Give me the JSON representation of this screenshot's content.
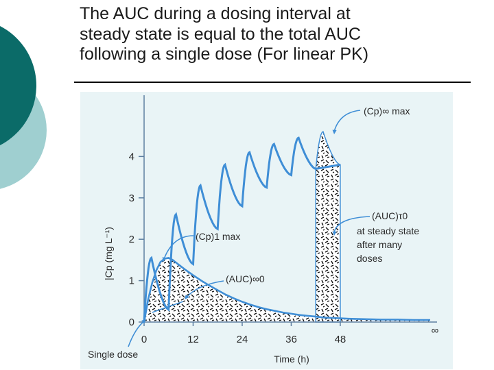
{
  "slide": {
    "title_lines": [
      "The AUC during a dosing interval at",
      "steady state is equal to the total AUC",
      "following a single dose (For linear PK)"
    ],
    "colors": {
      "deco_dark": "#0b6b68",
      "deco_light": "#9fcfd0",
      "figure_bg": "#e9f4f6",
      "curve": "#3f8ed6",
      "axis": "#5d7ea0"
    }
  },
  "chart_data": {
    "type": "line",
    "xlabel": "Time (h)",
    "ylabel": "|Cp (mg L⁻¹)",
    "x_ticks": [
      "0",
      "12",
      "24",
      "36",
      "48",
      "∞"
    ],
    "y_ticks": [
      "0",
      "1",
      "2",
      "3",
      "4"
    ],
    "x_tick_values": [
      0,
      12,
      24,
      36,
      48
    ],
    "y_tick_values": [
      0,
      1,
      2,
      3,
      4
    ],
    "xlim": [
      0,
      70
    ],
    "ylim": [
      0,
      4.9
    ],
    "dosing_interval_h": 6,
    "series": [
      {
        "points": [
          [
            0,
            0
          ],
          [
            1,
            0.55
          ],
          [
            2,
            0.95
          ],
          [
            3,
            1.25
          ],
          [
            4,
            1.45
          ],
          [
            5,
            1.53
          ],
          [
            6,
            1.55
          ],
          [
            7,
            1.5
          ],
          [
            8,
            1.42
          ],
          [
            10,
            1.27
          ],
          [
            12,
            1.13
          ],
          [
            14,
            1.0
          ],
          [
            16,
            0.88
          ],
          [
            18,
            0.77
          ],
          [
            20,
            0.66
          ],
          [
            22,
            0.57
          ],
          [
            24,
            0.49
          ],
          [
            26,
            0.42
          ],
          [
            28,
            0.36
          ],
          [
            30,
            0.31
          ],
          [
            32,
            0.27
          ],
          [
            34,
            0.23
          ],
          [
            36,
            0.2
          ],
          [
            38,
            0.17
          ],
          [
            40,
            0.15
          ],
          [
            42,
            0.13
          ],
          [
            44,
            0.11
          ],
          [
            46,
            0.1
          ],
          [
            48,
            0.09
          ],
          [
            50,
            0.08
          ],
          [
            54,
            0.07
          ],
          [
            58,
            0.06
          ],
          [
            62,
            0.06
          ],
          [
            66,
            0.05
          ],
          [
            70,
            0.05
          ]
        ]
      }
    ],
    "multiple_dose": {
      "peaks": [
        1.55,
        2.6,
        3.3,
        3.8,
        4.1,
        4.3,
        4.45,
        4.6
      ],
      "troughs": [
        0.3,
        1.4,
        2.25,
        2.8,
        3.25,
        3.55,
        3.7,
        3.8
      ]
    },
    "steady_state_interval_h": [
      42,
      48
    ],
    "annotations": [
      {
        "text": "(Cp)∞ max"
      },
      {
        "text": "(Cp)1 max"
      },
      {
        "text": "(AUC)∞0"
      },
      {
        "text": "(AUC)τ0"
      },
      {
        "text": "at steady state"
      },
      {
        "text": "after many"
      },
      {
        "text": "doses"
      },
      {
        "text": "Single dose"
      }
    ]
  }
}
